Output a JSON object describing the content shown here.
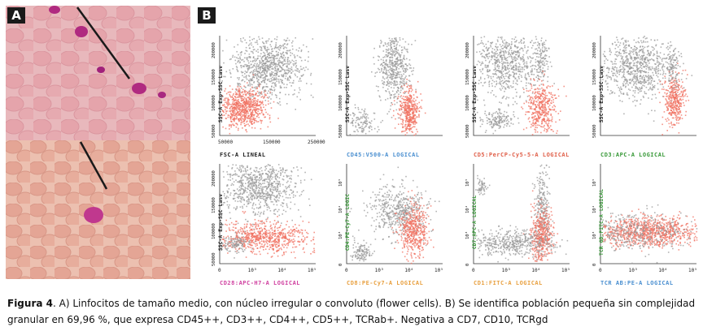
{
  "panels": {
    "a_label": "A",
    "b_label": "B"
  },
  "plots": [
    {
      "id": "p1",
      "xlabel": "FSC-A LINEAL",
      "xlabel_color": "#222222",
      "ylabel": "SSC-A Exp-SSC Lasv",
      "xticks": [
        "50000",
        "150000",
        "250000"
      ],
      "yticks": [
        "50000",
        "100000",
        "150000",
        "200000"
      ]
    },
    {
      "id": "p2",
      "xlabel": "CD45:V500-A LOGICAL",
      "xlabel_color": "#4a8fd0",
      "ylabel": "SSC-A Exp-SSC Lasv",
      "xticks": [],
      "yticks": [
        "50000",
        "100000",
        "150000",
        "200000"
      ]
    },
    {
      "id": "p3",
      "xlabel": "CD5:PerCP-Cy5-5-A LOGICAL",
      "xlabel_color": "#e0604a",
      "ylabel": "SSC-A Exp-SSC Lasv",
      "xticks": [],
      "yticks": [
        "50000",
        "100000",
        "150000",
        "200000"
      ]
    },
    {
      "id": "p4",
      "xlabel": "CD3:APC-A LOGICAL",
      "xlabel_color": "#3a9a3a",
      "ylabel": "SSC-A Exp-SSC Lasv",
      "xticks": [],
      "yticks": [
        "50000",
        "100000",
        "150000",
        "200000"
      ]
    },
    {
      "id": "p5",
      "xlabel": "CD28:APC-H7-A LOGICAL",
      "xlabel_color": "#d040a0",
      "ylabel": "SSC-A Exp-SSC Lasv",
      "xticks": [
        "0",
        "10³",
        "10⁴",
        "10⁵"
      ],
      "yticks": [
        "50000",
        "100000",
        "150000",
        "200000"
      ]
    },
    {
      "id": "p6",
      "xlabel": "CD8:PE-Cy7-A LOGICAL",
      "xlabel_color": "#e8a040",
      "ylabel": "CD4:PE-Cy7-A LOGIC",
      "ylabel_color": "#3a9a3a",
      "xticks": [
        "0",
        "10³",
        "10⁴",
        "10⁵"
      ],
      "yticks": [
        "0",
        "10³",
        "10⁴",
        "10⁵"
      ]
    },
    {
      "id": "p7",
      "xlabel": "CD1:FITC-A LOGICAL",
      "xlabel_color": "#e8a040",
      "ylabel": "CD7:APC-A LOGICAL",
      "ylabel_color": "#3a9a3a",
      "xticks": [
        "0",
        "10³",
        "10⁴",
        "10⁵"
      ],
      "yticks": [
        "0",
        "10³",
        "10⁴",
        "10⁵"
      ]
    },
    {
      "id": "p8",
      "xlabel": "TCR AB:PE-A LOGICAL",
      "xlabel_color": "#4a8fd0",
      "ylabel": "TCR GD:FITC-A LOGICAL",
      "ylabel_color": "#3a9a3a",
      "xticks": [
        "0",
        "10³",
        "10⁴",
        "10⁵"
      ],
      "yticks": [
        "0",
        "10³",
        "10⁴",
        "10⁵"
      ]
    }
  ],
  "caption": {
    "figure_label": "Figura 4",
    "text": ". A) Linfocitos de tamaño medio, con núcleo irregular o convoluto (flower cells). B) Se identifica población pequeña sin complejidad granular en 69,96 %, que expresa CD45++, CD3++, CD4++, CD5++, TCRab+. Negativa a CD7, CD10, TCRgd"
  },
  "colors": {
    "gray_population": "#9a9a9a",
    "salmon_population": "#f07060"
  }
}
